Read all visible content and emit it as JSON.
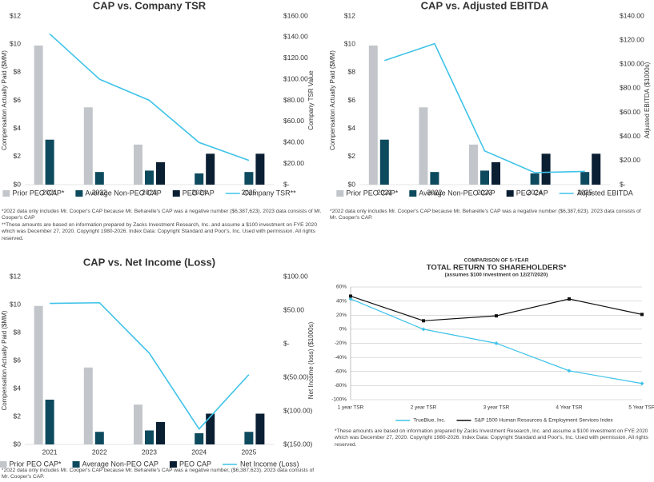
{
  "chart_data": [
    {
      "type": "combo",
      "title": "CAP vs. Company TSR",
      "ylabel": "Compensation Actually Paid ($MM)",
      "y2label": "Company TSR Value",
      "categories": [
        "2021",
        "2022",
        "2023",
        "2024",
        "2025"
      ],
      "series": [
        {
          "name": "Prior PEO CAP*",
          "type": "bar",
          "color": "#c2c6cb",
          "values": [
            9.9,
            5.5,
            2.85,
            null,
            null
          ]
        },
        {
          "name": "Average Non-PEO CAP",
          "type": "bar",
          "color": "#0e4a5e",
          "values": [
            3.2,
            0.9,
            1.0,
            0.8,
            0.9
          ]
        },
        {
          "name": "PEO CAP",
          "type": "bar",
          "color": "#0b1f33",
          "values": [
            null,
            null,
            1.6,
            2.2,
            2.2
          ]
        },
        {
          "name": "Company TSR**",
          "type": "line",
          "axis": "y2",
          "color": "#3ec3e8",
          "values": [
            143,
            100,
            80,
            40,
            23
          ]
        }
      ],
      "ylim": [
        0,
        12
      ],
      "yticks": [
        {
          "value": 0,
          "label": "$0"
        },
        {
          "value": 2,
          "label": "$2"
        },
        {
          "value": 4,
          "label": "$4"
        },
        {
          "value": 6,
          "label": "$6"
        },
        {
          "value": 8,
          "label": "$8"
        },
        {
          "value": 10,
          "label": "$10"
        },
        {
          "value": 12,
          "label": "$12"
        }
      ],
      "y2lim": [
        0,
        160
      ],
      "y2ticks": [
        {
          "value": 0,
          "label": "$-"
        },
        {
          "value": 20,
          "label": "$20.00"
        },
        {
          "value": 40,
          "label": "$40.00"
        },
        {
          "value": 60,
          "label": "$60.00"
        },
        {
          "value": 80,
          "label": "$80.00"
        },
        {
          "value": 100,
          "label": "$100.00"
        },
        {
          "value": 120,
          "label": "$120.00"
        },
        {
          "value": 140,
          "label": "$140.00"
        },
        {
          "value": 160,
          "label": "$160.00"
        }
      ],
      "notes": [
        "*2022 data only includes Mr. Cooper's CAP because Mr. Beharelle's CAP was a negative number ($6,387,623). 2023 data consists of Mr. Cooper's CAP",
        "**These amounts are based on information prepared by Zacks Investment Research, Inc. and assume a $100 investment on FYE 2020 which was December 27, 2020. Copyright 1980-2026. Index Data: Copyright Standard and Poor's, Inc. Used with permission. All rights reserved."
      ]
    },
    {
      "type": "combo",
      "title": "CAP vs. Adjusted EBITDA",
      "ylabel": "Compensation Actually Paid ($MM)",
      "y2label": "Adjusted EBITDA ($1000s)",
      "categories": [
        "2021",
        "2022",
        "2023",
        "2024",
        "2025"
      ],
      "series": [
        {
          "name": "Prior PEO CAP*",
          "type": "bar",
          "color": "#c2c6cb",
          "values": [
            9.9,
            5.5,
            2.85,
            null,
            null
          ]
        },
        {
          "name": "Average Non-PEO CAP",
          "type": "bar",
          "color": "#0e4a5e",
          "values": [
            3.2,
            0.9,
            1.0,
            0.8,
            0.9
          ]
        },
        {
          "name": "PEO CAP",
          "type": "bar",
          "color": "#0b1f33",
          "values": [
            null,
            null,
            1.6,
            2.2,
            2.2
          ]
        },
        {
          "name": "Adjusted EBITDA",
          "type": "line",
          "axis": "y2",
          "color": "#3ec3e8",
          "values": [
            103,
            117,
            28,
            10,
            11
          ]
        }
      ],
      "ylim": [
        0,
        12
      ],
      "yticks": [
        {
          "value": 0,
          "label": "$0"
        },
        {
          "value": 2,
          "label": "$2"
        },
        {
          "value": 4,
          "label": "$4"
        },
        {
          "value": 6,
          "label": "$6"
        },
        {
          "value": 8,
          "label": "$8"
        },
        {
          "value": 10,
          "label": "$10"
        },
        {
          "value": 12,
          "label": "$12"
        }
      ],
      "y2lim": [
        0,
        140
      ],
      "y2ticks": [
        {
          "value": 0,
          "label": "$-"
        },
        {
          "value": 20,
          "label": "$20.00"
        },
        {
          "value": 40,
          "label": "$40.00"
        },
        {
          "value": 60,
          "label": "$60.00"
        },
        {
          "value": 80,
          "label": "$80.00"
        },
        {
          "value": 100,
          "label": "$100.00"
        },
        {
          "value": 120,
          "label": "$120.00"
        },
        {
          "value": 140,
          "label": "$140.00"
        }
      ],
      "notes": [
        "*2022 data only includes Mr. Cooper's CAP because Mr. Beharelle's CAP was a negative number ($6,387,623). 2023 data consists of Mr. Cooper's CAP."
      ]
    },
    {
      "type": "combo",
      "title": "CAP vs. Net Income (Loss)",
      "ylabel": "Compensation Actually Paid ($MM)",
      "y2label": "Net Income (loss) ($1000s)",
      "categories": [
        "2021",
        "2022",
        "2023",
        "2024",
        "2025"
      ],
      "series": [
        {
          "name": "Prior PEO CAP*",
          "type": "bar",
          "color": "#c2c6cb",
          "values": [
            9.9,
            5.5,
            2.85,
            null,
            null
          ]
        },
        {
          "name": "Average Non-PEO CAP",
          "type": "bar",
          "color": "#0e4a5e",
          "values": [
            3.2,
            0.9,
            1.0,
            0.8,
            0.9
          ]
        },
        {
          "name": "PEO CAP",
          "type": "bar",
          "color": "#0b1f33",
          "values": [
            null,
            null,
            1.6,
            2.2,
            2.2
          ]
        },
        {
          "name": "Net Income (Loss)",
          "type": "line",
          "axis": "y2",
          "color": "#3ec3e8",
          "values": [
            60,
            61,
            -14,
            -127,
            -46
          ]
        }
      ],
      "ylim": [
        0,
        12
      ],
      "yticks": [
        {
          "value": 0,
          "label": "$0"
        },
        {
          "value": 2,
          "label": "$2"
        },
        {
          "value": 4,
          "label": "$4"
        },
        {
          "value": 6,
          "label": "$6"
        },
        {
          "value": 8,
          "label": "$8"
        },
        {
          "value": 10,
          "label": "$10"
        },
        {
          "value": 12,
          "label": "$12"
        }
      ],
      "y2lim": [
        -150,
        100
      ],
      "y2ticks": [
        {
          "value": -150,
          "label": "$(150.00)"
        },
        {
          "value": -100,
          "label": "$(100.00)"
        },
        {
          "value": -50,
          "label": "$(50.00)"
        },
        {
          "value": 0,
          "label": "$-"
        },
        {
          "value": 50,
          "label": "$50.00"
        },
        {
          "value": 100,
          "label": "$100.00"
        }
      ],
      "notes": [
        "*2022 data only includes Mr. Cooper's CAP because Mr. Beharelle's CAP was a negative number, ($6,387,623). 2023 data consists of Mr. Cooper's CAP."
      ]
    },
    {
      "type": "line",
      "pretitle": "COMPARISON OF 5-YEAR",
      "title": "TOTAL RETURN TO SHAREHOLDERS*",
      "subtitle": "(assumes $100 investment on 12/27/2020)",
      "categories": [
        "1 year TSR",
        "2 year TSR",
        "3 year TSR",
        "4 Year TSR",
        "5 Year TSR"
      ],
      "series": [
        {
          "name": "TrueBlue, Inc.",
          "color": "#3ec3e8",
          "values": [
            43,
            0,
            -20,
            -59,
            -77
          ]
        },
        {
          "name": "S&P 1500 Human Resources & Employment Services Index",
          "color": "#111111",
          "values": [
            47,
            12,
            19,
            43,
            21
          ]
        }
      ],
      "ylim": [
        -100,
        60
      ],
      "yticks": [
        {
          "value": -100,
          "label": "-100%"
        },
        {
          "value": -80,
          "label": "-80%"
        },
        {
          "value": -60,
          "label": "-60%"
        },
        {
          "value": -40,
          "label": "-40%"
        },
        {
          "value": -20,
          "label": "-20%"
        },
        {
          "value": 0,
          "label": "0%"
        },
        {
          "value": 20,
          "label": "20%"
        },
        {
          "value": 40,
          "label": "40%"
        },
        {
          "value": 60,
          "label": "60%"
        }
      ],
      "grid": true,
      "notes": [
        "*These amounts are based on information prepared by Zacks Investment Research, Inc. and assume a $100 investment on FYE 2020 which was December 27, 2020. Copyright 1980-2026. Index Data: Copyright Standard and Poor's, Inc. Used with permission. All rights reserved."
      ]
    }
  ]
}
